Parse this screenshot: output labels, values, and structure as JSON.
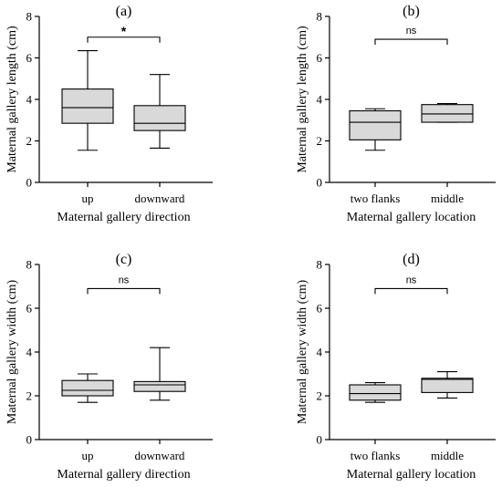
{
  "figure": {
    "box_fill": "#d9d9d9",
    "line_color": "#000000"
  },
  "chart_data": [
    {
      "type": "box",
      "panel_label": "(a)",
      "ylabel": "Maternal gallery length (cm)",
      "xlabel": "Maternal gallery direction",
      "ylim": [
        0,
        8
      ],
      "yticks": [
        "0",
        "2",
        "4",
        "6",
        "8"
      ],
      "categories": [
        "up",
        "downward"
      ],
      "boxes": [
        {
          "min": 1.55,
          "q1": 2.85,
          "median": 3.6,
          "q3": 4.5,
          "max": 6.35
        },
        {
          "min": 1.65,
          "q1": 2.5,
          "median": 2.85,
          "q3": 3.7,
          "max": 5.2
        }
      ],
      "significance": {
        "label": "*",
        "y": 7.0
      }
    },
    {
      "type": "box",
      "panel_label": "(b)",
      "ylabel": "Maternal gallery length (cm)",
      "xlabel": "Maternal gallery location",
      "ylim": [
        0,
        8
      ],
      "yticks": [
        "0",
        "2",
        "4",
        "6",
        "8"
      ],
      "categories": [
        "two flanks",
        "middle"
      ],
      "boxes": [
        {
          "min": 1.55,
          "q1": 2.05,
          "median": 2.9,
          "q3": 3.45,
          "max": 3.55
        },
        {
          "min": 2.9,
          "q1": 2.9,
          "median": 3.3,
          "q3": 3.75,
          "max": 3.8
        }
      ],
      "significance": {
        "label": "ns",
        "y": 6.9
      }
    },
    {
      "type": "box",
      "panel_label": "(c)",
      "ylabel": "Maternal gallery width (cm)",
      "xlabel": "Maternal gallery direction",
      "ylim": [
        0,
        8
      ],
      "yticks": [
        "0",
        "2",
        "4",
        "6",
        "8"
      ],
      "categories": [
        "up",
        "downward"
      ],
      "boxes": [
        {
          "min": 1.7,
          "q1": 2.0,
          "median": 2.25,
          "q3": 2.7,
          "max": 3.0
        },
        {
          "min": 1.8,
          "q1": 2.2,
          "median": 2.5,
          "q3": 2.65,
          "max": 4.2
        }
      ],
      "significance": {
        "label": "ns",
        "y": 6.9
      }
    },
    {
      "type": "box",
      "panel_label": "(d)",
      "ylabel": "Maternal gallery width (cm)",
      "xlabel": "Maternal gallery location",
      "ylim": [
        0,
        8
      ],
      "yticks": [
        "0",
        "2",
        "4",
        "6",
        "8"
      ],
      "categories": [
        "two flanks",
        "middle"
      ],
      "boxes": [
        {
          "min": 1.7,
          "q1": 1.8,
          "median": 2.1,
          "q3": 2.5,
          "max": 2.6
        },
        {
          "min": 1.9,
          "q1": 2.15,
          "median": 2.75,
          "q3": 2.8,
          "max": 3.1
        }
      ],
      "significance": {
        "label": "ns",
        "y": 6.9
      }
    }
  ]
}
